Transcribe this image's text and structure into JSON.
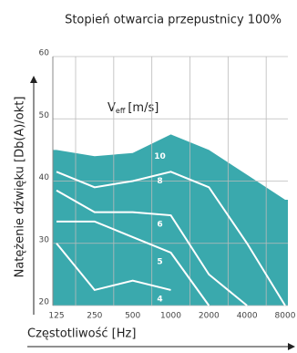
{
  "chart_data": {
    "type": "area",
    "title": "Stopień otwarcia przepustnicy 100%",
    "x_label": "Częstotliwość [Hz]",
    "y_label": "Natężenie dźwięku [Db(A)/okt]",
    "annotation": {
      "main": "V",
      "sub": "eff",
      "unit": "[m/s]"
    },
    "categories": [
      "125",
      "250",
      "500",
      "1000",
      "2000",
      "4000",
      "8000"
    ],
    "ylim": [
      20,
      60
    ],
    "yticks": [
      20,
      30,
      40,
      50,
      60
    ],
    "grid": true,
    "fill_color": "#3aa9ad",
    "line_color": "#ffffff",
    "series": [
      {
        "name": "10",
        "values": [
          45,
          44,
          44.5,
          47.5,
          45,
          41,
          37
        ]
      },
      {
        "name": "8",
        "values": [
          41.5,
          39,
          40,
          41.5,
          39,
          30,
          20
        ]
      },
      {
        "name": "6",
        "values": [
          38.5,
          35,
          35,
          34.5,
          25,
          20,
          null
        ]
      },
      {
        "name": "5",
        "values": [
          33.5,
          33.5,
          31,
          28.5,
          20,
          null,
          null
        ]
      },
      {
        "name": "4",
        "values": [
          30,
          22.5,
          24,
          22.5,
          null,
          null,
          null
        ]
      }
    ]
  }
}
